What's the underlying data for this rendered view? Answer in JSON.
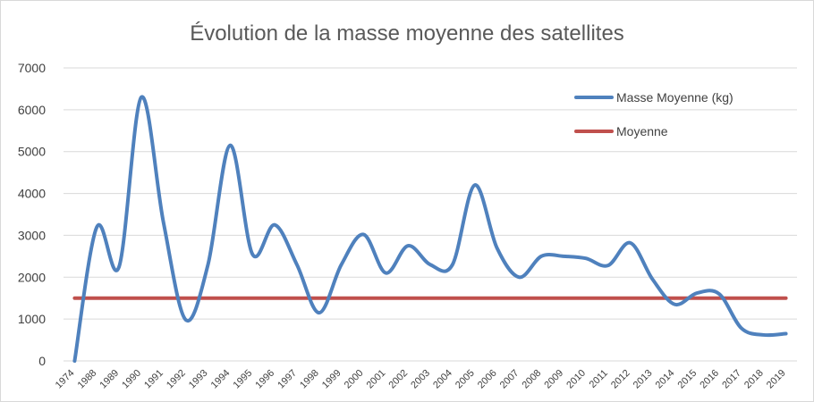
{
  "chart_data": {
    "type": "line",
    "title": "Évolution de la masse moyenne des satellites",
    "xlabel": "",
    "ylabel": "",
    "ylim": [
      0,
      7000
    ],
    "yticks": [
      0,
      1000,
      2000,
      3000,
      4000,
      5000,
      6000,
      7000
    ],
    "grid": true,
    "legend_position": "top-right",
    "categories": [
      "1974",
      "1988",
      "1989",
      "1990",
      "1991",
      "1992",
      "1993",
      "1994",
      "1995",
      "1996",
      "1997",
      "1998",
      "1999",
      "2000",
      "2001",
      "2002",
      "2003",
      "2004",
      "2005",
      "2006",
      "2007",
      "2008",
      "2009",
      "2010",
      "2011",
      "2012",
      "2013",
      "2014",
      "2015",
      "2016",
      "2017",
      "2018",
      "2019"
    ],
    "series": [
      {
        "name": "Masse Moyenne (kg)",
        "color": "#4f81bd",
        "smooth": true,
        "values": [
          0,
          3200,
          2250,
          6300,
          3300,
          980,
          2300,
          5150,
          2550,
          3250,
          2300,
          1150,
          2300,
          3020,
          2100,
          2750,
          2300,
          2300,
          4200,
          2700,
          2000,
          2500,
          2500,
          2450,
          2280,
          2820,
          1950,
          1350,
          1620,
          1600,
          780,
          620,
          650
        ]
      },
      {
        "name": "Moyenne",
        "color": "#c0504d",
        "smooth": false,
        "values": [
          1500,
          1500,
          1500,
          1500,
          1500,
          1500,
          1500,
          1500,
          1500,
          1500,
          1500,
          1500,
          1500,
          1500,
          1500,
          1500,
          1500,
          1500,
          1500,
          1500,
          1500,
          1500,
          1500,
          1500,
          1500,
          1500,
          1500,
          1500,
          1500,
          1500,
          1500,
          1500,
          1500
        ]
      }
    ]
  }
}
